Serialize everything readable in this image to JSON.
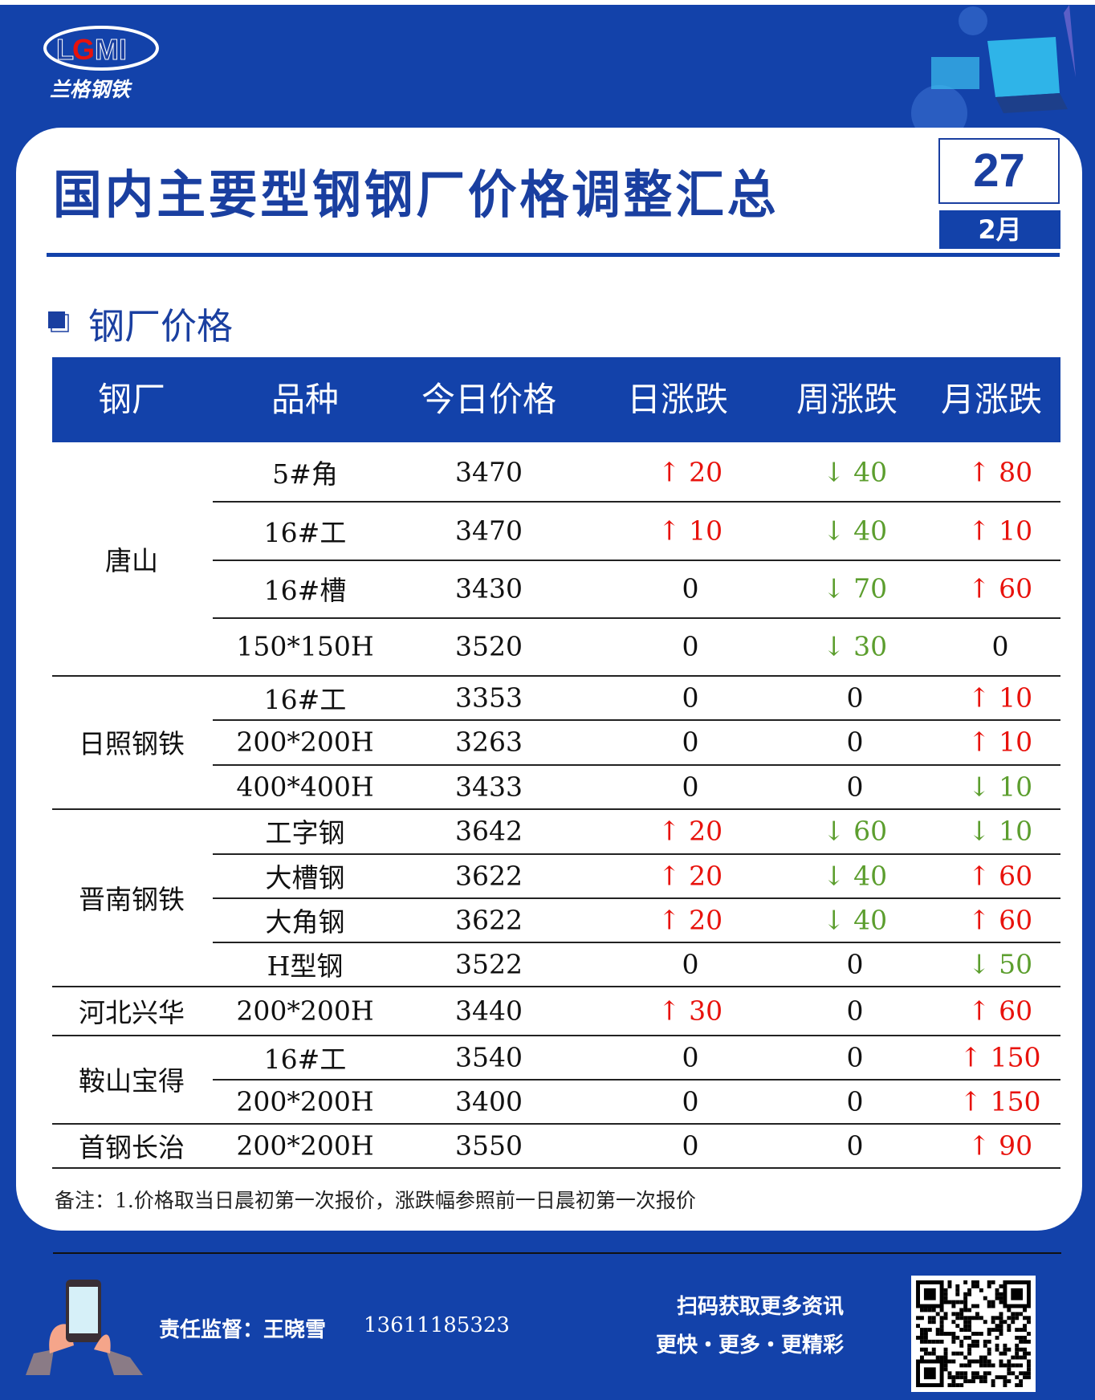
{
  "brand": {
    "logo_text": "LGMI",
    "logo_sub": "兰格钢铁"
  },
  "header": {
    "title": "国内主要型钢钢厂价格调整汇总",
    "day": "27",
    "month": "2月"
  },
  "section": {
    "title": "钢厂价格"
  },
  "table": {
    "columns": [
      "钢厂",
      "品种",
      "今日价格",
      "日涨跌",
      "周涨跌",
      "月涨跌"
    ],
    "groups": [
      {
        "mill": "唐山",
        "rows": [
          {
            "product": "5#角",
            "price": "3470",
            "day": {
              "dir": "up",
              "value": "20"
            },
            "week": {
              "dir": "down",
              "value": "40"
            },
            "month": {
              "dir": "up",
              "value": "80"
            }
          },
          {
            "product": "16#工",
            "price": "3470",
            "day": {
              "dir": "up",
              "value": "10"
            },
            "week": {
              "dir": "down",
              "value": "40"
            },
            "month": {
              "dir": "up",
              "value": "10"
            }
          },
          {
            "product": "16#槽",
            "price": "3430",
            "day": {
              "dir": "flat",
              "value": "0"
            },
            "week": {
              "dir": "down",
              "value": "70"
            },
            "month": {
              "dir": "up",
              "value": "60"
            }
          },
          {
            "product": "150*150H",
            "price": "3520",
            "day": {
              "dir": "flat",
              "value": "0"
            },
            "week": {
              "dir": "down",
              "value": "30"
            },
            "month": {
              "dir": "flat",
              "value": "0"
            }
          }
        ]
      },
      {
        "mill": "日照钢铁",
        "rows": [
          {
            "product": "16#工",
            "price": "3353",
            "day": {
              "dir": "flat",
              "value": "0"
            },
            "week": {
              "dir": "flat",
              "value": "0"
            },
            "month": {
              "dir": "up",
              "value": "10"
            }
          },
          {
            "product": "200*200H",
            "price": "3263",
            "day": {
              "dir": "flat",
              "value": "0"
            },
            "week": {
              "dir": "flat",
              "value": "0"
            },
            "month": {
              "dir": "up",
              "value": "10"
            }
          },
          {
            "product": "400*400H",
            "price": "3433",
            "day": {
              "dir": "flat",
              "value": "0"
            },
            "week": {
              "dir": "flat",
              "value": "0"
            },
            "month": {
              "dir": "down",
              "value": "10"
            }
          }
        ]
      },
      {
        "mill": "晋南钢铁",
        "rows": [
          {
            "product": "工字钢",
            "price": "3642",
            "day": {
              "dir": "up",
              "value": "20"
            },
            "week": {
              "dir": "down",
              "value": "60"
            },
            "month": {
              "dir": "down",
              "value": "10"
            }
          },
          {
            "product": "大槽钢",
            "price": "3622",
            "day": {
              "dir": "up",
              "value": "20"
            },
            "week": {
              "dir": "down",
              "value": "40"
            },
            "month": {
              "dir": "up",
              "value": "60"
            }
          },
          {
            "product": "大角钢",
            "price": "3622",
            "day": {
              "dir": "up",
              "value": "20"
            },
            "week": {
              "dir": "down",
              "value": "40"
            },
            "month": {
              "dir": "up",
              "value": "60"
            }
          },
          {
            "product": "H型钢",
            "price": "3522",
            "day": {
              "dir": "flat",
              "value": "0"
            },
            "week": {
              "dir": "flat",
              "value": "0"
            },
            "month": {
              "dir": "down",
              "value": "50"
            }
          }
        ]
      },
      {
        "mill": "河北兴华",
        "rows": [
          {
            "product": "200*200H",
            "price": "3440",
            "day": {
              "dir": "up",
              "value": "30"
            },
            "week": {
              "dir": "flat",
              "value": "0"
            },
            "month": {
              "dir": "up",
              "value": "60"
            }
          }
        ]
      },
      {
        "mill": "鞍山宝得",
        "rows": [
          {
            "product": "16#工",
            "price": "3540",
            "day": {
              "dir": "flat",
              "value": "0"
            },
            "week": {
              "dir": "flat",
              "value": "0"
            },
            "month": {
              "dir": "up",
              "value": "150"
            }
          },
          {
            "product": "200*200H",
            "price": "3400",
            "day": {
              "dir": "flat",
              "value": "0"
            },
            "week": {
              "dir": "flat",
              "value": "0"
            },
            "month": {
              "dir": "up",
              "value": "150"
            }
          }
        ]
      },
      {
        "mill": "首钢长治",
        "rows": [
          {
            "product": "200*200H",
            "price": "3550",
            "day": {
              "dir": "flat",
              "value": "0"
            },
            "week": {
              "dir": "flat",
              "value": "0"
            },
            "month": {
              "dir": "up",
              "value": "90"
            }
          }
        ]
      }
    ]
  },
  "note": "备注：1.价格取当日晨初第一次报价，涨跌幅参照前一日晨初第一次报价",
  "footer": {
    "supervisor": "责任监督：王晓雪",
    "phone": "13611185323",
    "slogan1": "扫码获取更多资讯",
    "slogan2": "更快・更多・更精彩"
  },
  "colors": {
    "brand_blue": "#1342aa",
    "up": "#e8120c",
    "down": "#5c9e2e"
  }
}
